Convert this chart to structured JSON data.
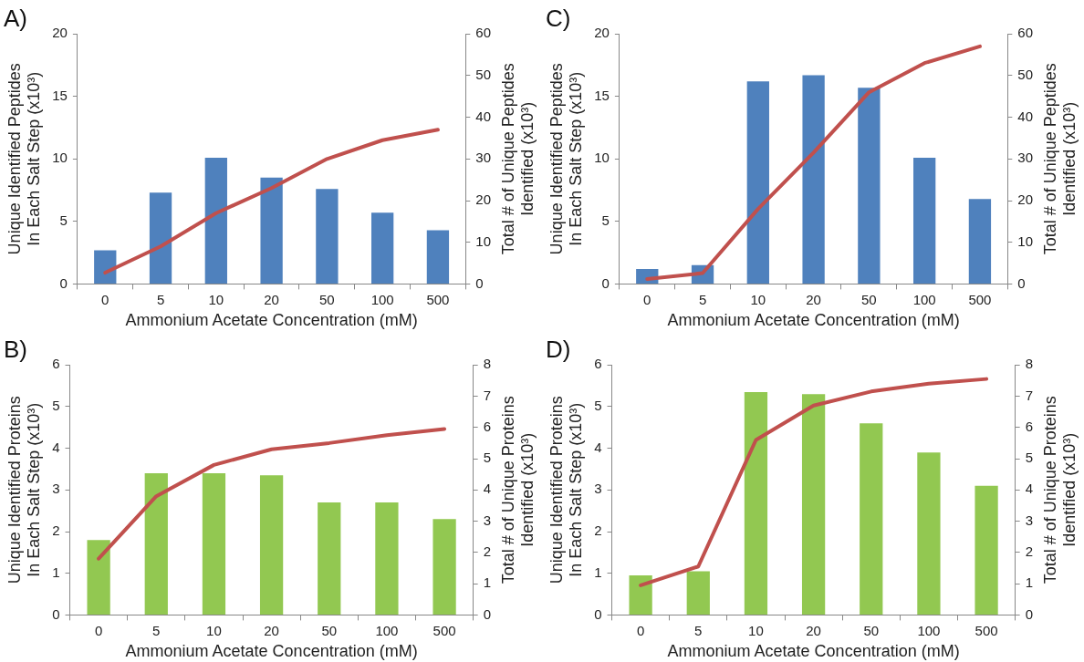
{
  "chart_data": [
    {
      "type": "bar",
      "title": "A)",
      "categories": [
        "0",
        "5",
        "10",
        "20",
        "50",
        "100",
        "500"
      ],
      "xlabel": "Ammonium Acetate Concentration (mM)",
      "ylabel": "Unique Identified Peptides\nIn Each Salt Step (x10³)",
      "y2label": "Total # of Unique Peptides\nIdentified (x10³)",
      "ylim": [
        0,
        20
      ],
      "yticks": [
        0,
        5,
        10,
        15,
        20
      ],
      "y2lim": [
        0,
        60
      ],
      "y2ticks": [
        0,
        10,
        20,
        30,
        40,
        50,
        60
      ],
      "legend": false,
      "marker": "none",
      "series": [
        {
          "color": "#4f81bd",
          "values": [
            2.7,
            7.3,
            10.1,
            8.5,
            7.6,
            5.7,
            4.3
          ]
        },
        {
          "type": "line",
          "axis": "y2",
          "color": "#c0504d",
          "values": [
            2.7,
            9,
            17,
            23,
            30,
            34.5,
            37
          ]
        }
      ]
    },
    {
      "type": "bar",
      "title": "C)",
      "categories": [
        "0",
        "5",
        "10",
        "20",
        "50",
        "100",
        "500"
      ],
      "xlabel": "Ammonium Acetate Concentration (mM)",
      "ylabel": "Unique Identified Peptides\nIn Each Salt Step (x10³)",
      "y2label": "Total # of Unique Peptides\nIdentified (x10³)",
      "ylim": [
        0,
        20
      ],
      "yticks": [
        0,
        5,
        10,
        15,
        20
      ],
      "y2lim": [
        0,
        60
      ],
      "y2ticks": [
        0,
        10,
        20,
        30,
        40,
        50,
        60
      ],
      "legend": false,
      "marker": "none",
      "series": [
        {
          "color": "#4f81bd",
          "values": [
            1.2,
            1.5,
            16.2,
            16.7,
            15.7,
            10.1,
            6.8
          ]
        },
        {
          "type": "line",
          "axis": "y2",
          "color": "#c0504d",
          "values": [
            1.2,
            2.6,
            18,
            31.5,
            46,
            53,
            57
          ]
        }
      ]
    },
    {
      "type": "bar",
      "title": "B)",
      "categories": [
        "0",
        "5",
        "10",
        "20",
        "50",
        "100",
        "500"
      ],
      "xlabel": "Ammonium Acetate Concentration (mM)",
      "ylabel": "Unique Identified Proteins\nIn Each Salt Step (x10³)",
      "y2label": "Total # of Unique Proteins\nIdentified (x10³)",
      "ylim": [
        0,
        6
      ],
      "yticks": [
        0,
        1,
        2,
        3,
        4,
        5,
        6
      ],
      "y2lim": [
        0,
        8
      ],
      "y2ticks": [
        0,
        1,
        2,
        3,
        4,
        5,
        6,
        7,
        8
      ],
      "legend": false,
      "marker": "none",
      "series": [
        {
          "color": "#92c851",
          "values": [
            1.8,
            3.4,
            3.4,
            3.35,
            2.7,
            2.7,
            2.3
          ]
        },
        {
          "type": "line",
          "axis": "y2",
          "color": "#c0504d",
          "values": [
            1.8,
            3.8,
            4.8,
            5.3,
            5.5,
            5.75,
            5.95
          ]
        }
      ]
    },
    {
      "type": "bar",
      "title": "D)",
      "categories": [
        "0",
        "5",
        "10",
        "20",
        "50",
        "100",
        "500"
      ],
      "xlabel": "Ammonium Acetate Concentration (mM)",
      "ylabel": "Unique Identified Proteins\nIn Each Salt Step (x10³)",
      "y2label": "Total # of Unique Proteins\nIdentified (x10³)",
      "ylim": [
        0,
        6
      ],
      "yticks": [
        0,
        1,
        2,
        3,
        4,
        5,
        6
      ],
      "y2lim": [
        0,
        8
      ],
      "y2ticks": [
        0,
        1,
        2,
        3,
        4,
        5,
        6,
        7,
        8
      ],
      "legend": false,
      "marker": "none",
      "series": [
        {
          "color": "#92c851",
          "values": [
            0.95,
            1.05,
            5.35,
            5.3,
            4.6,
            3.9,
            3.1
          ]
        },
        {
          "type": "line",
          "axis": "y2",
          "color": "#c0504d",
          "values": [
            0.95,
            1.55,
            5.6,
            6.7,
            7.15,
            7.4,
            7.55
          ]
        }
      ]
    }
  ]
}
